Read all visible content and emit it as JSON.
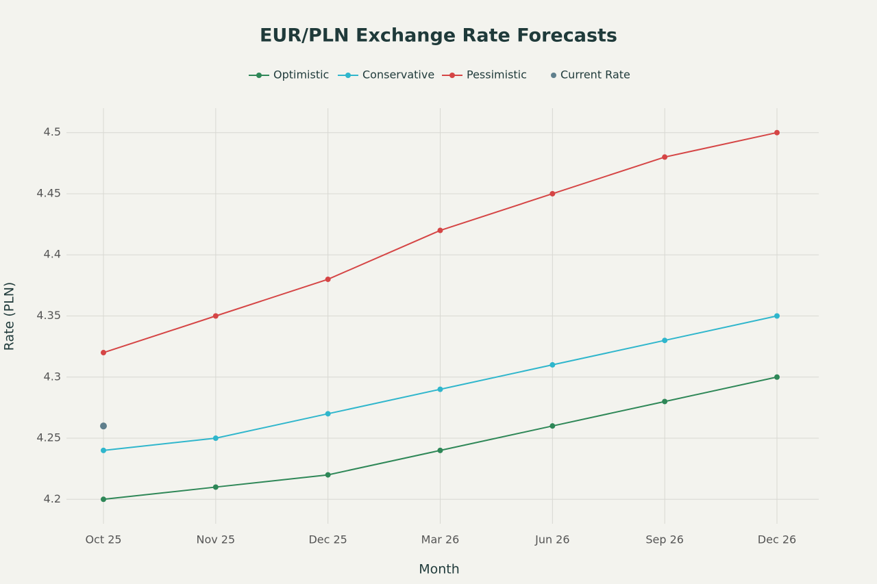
{
  "chart_data": {
    "type": "line",
    "title": "EUR/PLN Exchange Rate Forecasts",
    "x_label": "Month",
    "y_label": "Rate (PLN)",
    "categories": [
      "Oct 25",
      "Nov 25",
      "Dec 25",
      "Mar 26",
      "Jun 26",
      "Sep 26",
      "Dec 26"
    ],
    "series": [
      {
        "name": "Optimistic",
        "color": "#2e8757",
        "mode": "lines+markers",
        "values": [
          4.2,
          4.21,
          4.22,
          4.24,
          4.26,
          4.28,
          4.3
        ]
      },
      {
        "name": "Conservative",
        "color": "#2fb6cc",
        "mode": "lines+markers",
        "values": [
          4.24,
          4.25,
          4.27,
          4.29,
          4.31,
          4.33,
          4.35
        ]
      },
      {
        "name": "Pessimistic",
        "color": "#d54545",
        "mode": "lines+markers",
        "values": [
          4.32,
          4.35,
          4.38,
          4.42,
          4.45,
          4.48,
          4.5
        ]
      },
      {
        "name": "Current Rate",
        "color": "#5f7f8c",
        "mode": "markers",
        "values": [
          4.26,
          null,
          null,
          null,
          null,
          null,
          null
        ]
      }
    ],
    "ylim": [
      4.18,
      4.52
    ],
    "yticks": [
      4.2,
      4.25,
      4.3,
      4.35,
      4.4,
      4.45,
      4.5
    ],
    "grid": true,
    "legend": "top"
  }
}
